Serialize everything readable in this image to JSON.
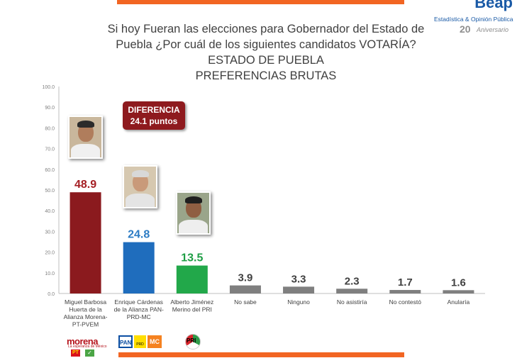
{
  "logo": {
    "wordmark": "Beap",
    "subtitle": "Estadística & Opinión Pública",
    "anniversary_number": "20",
    "anniversary_word": "Aniversario"
  },
  "header": {
    "question_line1": "Si hoy Fueran las elecciones para Gobernador del Estado de",
    "question_line2": "Puebla ¿Por cuál de los siguientes candidatos VOTARÍA?",
    "subtitle1": "ESTADO DE PUEBLA",
    "subtitle2": "PREFERENCIAS BRUTAS"
  },
  "callout": {
    "line1": "DIFERENCIA",
    "line2": "24.1 puntos"
  },
  "party_logos": {
    "morena": "morena",
    "morena_tagline": "La esperanza de México",
    "pt": "PT",
    "pvem": "✓",
    "pan": "PAN",
    "prd": "PRD",
    "mc": "MC",
    "pri": "PRI"
  },
  "chart_data": {
    "type": "bar",
    "categories": [
      "Miguel Barbosa Huerta de la Alianza Morena-PT-PVEM",
      "Enrique Cárdenas de la Alianza PAN-PRD-MC",
      "Alberto Jiménez Merino del PRI",
      "No sabe",
      "Ninguno",
      "No asistiría",
      "No contestó",
      "Anularía"
    ],
    "category_label_lines": [
      [
        "Miguel Barbosa",
        "Huerta de la",
        "Alianza Morena-",
        "PT-PVEM"
      ],
      [
        "Enrique Cárdenas",
        "de la Alianza PAN-",
        "PRD-MC"
      ],
      [
        "Alberto Jiménez",
        "Merino del PRI"
      ],
      [
        "No sabe"
      ],
      [
        "Ninguno"
      ],
      [
        "No asistiría"
      ],
      [
        "No contestó"
      ],
      [
        "Anularía"
      ]
    ],
    "values": [
      48.9,
      24.8,
      13.5,
      3.9,
      3.3,
      2.3,
      1.7,
      1.6
    ],
    "value_labels": [
      "48.9",
      "24.8",
      "13.5",
      "3.9",
      "3.3",
      "2.3",
      "1.7",
      "1.6"
    ],
    "bar_colors": [
      "#8b1a1e",
      "#1f6dbd",
      "#22a84a",
      "#7f7f7f",
      "#7f7f7f",
      "#7f7f7f",
      "#7f7f7f",
      "#7f7f7f"
    ],
    "label_colors": [
      "#a51f24",
      "#2d7cc4",
      "#1e9e45",
      "#404040",
      "#404040",
      "#404040",
      "#404040",
      "#404040"
    ],
    "ylim": [
      0,
      100
    ],
    "yticks": [
      "0.0",
      "10.0",
      "20.0",
      "30.0",
      "40.0",
      "50.0",
      "60.0",
      "70.0",
      "80.0",
      "90.0",
      "100.0"
    ],
    "grid": false,
    "legend": "none"
  }
}
